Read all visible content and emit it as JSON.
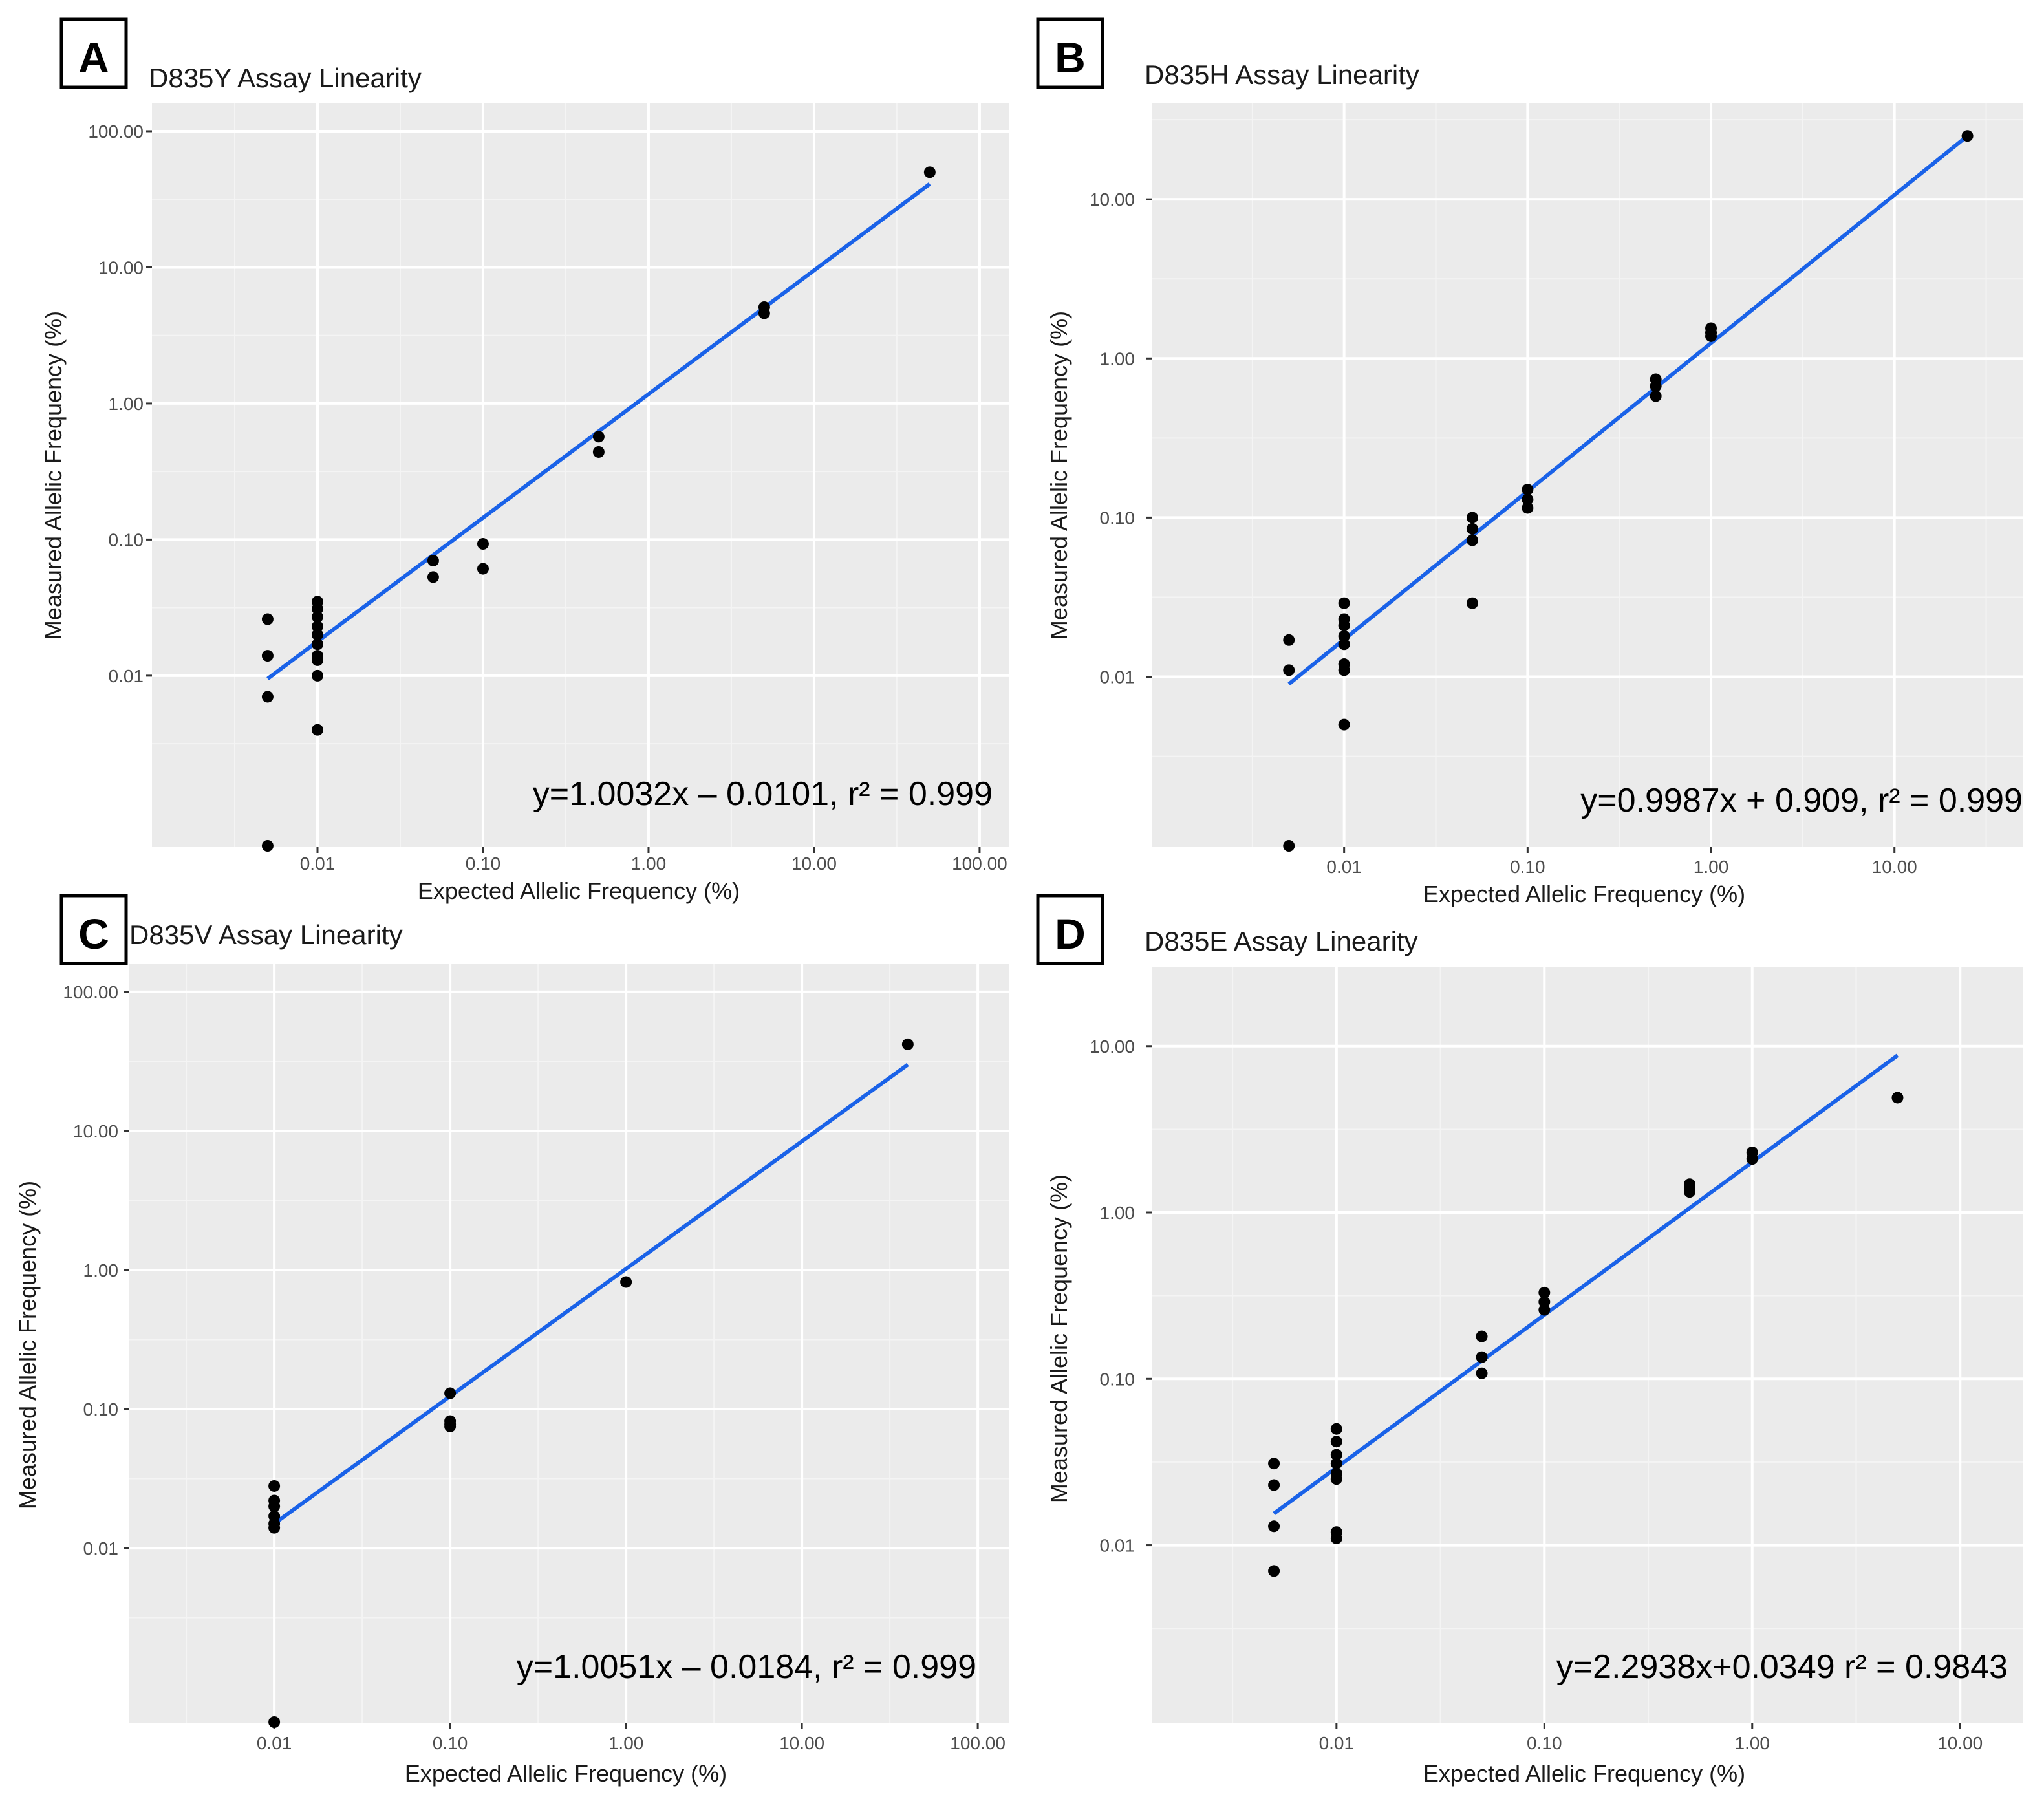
{
  "figure": {
    "description_hidden": false
  },
  "colors": {
    "panel_bg": "#ebebeb",
    "grid_major": "#ffffff",
    "grid_minor": "#f4f4f4",
    "fit_line": "#1a62e8",
    "point": "#000000",
    "tick_text": "#4d4d4d",
    "text": "#1a1a1a"
  },
  "chart_data": [
    {
      "panel_label": "A",
      "type": "scatter",
      "title": "D835Y Assay Linearity",
      "xlabel": "Expected Allelic Frequency (%)",
      "ylabel": "Measured Allelic Frequency (%)",
      "scale": "log10",
      "xlim": [
        0.001,
        150
      ],
      "ylim": [
        0.00055,
        160
      ],
      "x_ticks": [
        0.01,
        0.1,
        1,
        10,
        100
      ],
      "x_tick_labels": [
        "0.01",
        "0.10",
        "1.00",
        "10.00",
        "100.00"
      ],
      "y_ticks": [
        0.01,
        0.1,
        1,
        10,
        100
      ],
      "y_tick_labels": [
        "0.01",
        "0.10",
        "1.00",
        "10.00",
        "100.00"
      ],
      "points": [
        [
          0.005,
          0.026
        ],
        [
          0.005,
          0.014
        ],
        [
          0.005,
          0.007
        ],
        [
          0.005,
          0.00055
        ],
        [
          0.01,
          0.035
        ],
        [
          0.01,
          0.031
        ],
        [
          0.01,
          0.027
        ],
        [
          0.01,
          0.023
        ],
        [
          0.01,
          0.02
        ],
        [
          0.01,
          0.017
        ],
        [
          0.01,
          0.014
        ],
        [
          0.01,
          0.013
        ],
        [
          0.01,
          0.01
        ],
        [
          0.01,
          0.004
        ],
        [
          0.05,
          0.07
        ],
        [
          0.05,
          0.053
        ],
        [
          0.1,
          0.093
        ],
        [
          0.1,
          0.061
        ],
        [
          0.5,
          0.57
        ],
        [
          0.5,
          0.44
        ],
        [
          5,
          5.1
        ],
        [
          5,
          4.6
        ],
        [
          50,
          50
        ]
      ],
      "fit_line": {
        "x": [
          0.005,
          50
        ],
        "y": [
          0.0095,
          41
        ]
      },
      "equation": "y=1.0032x – 0.0101, r² = 0.999"
    },
    {
      "panel_label": "B",
      "type": "scatter",
      "title": "D835H Assay Linearity",
      "xlabel": "Expected Allelic Frequency (%)",
      "ylabel": "Measured Allelic Frequency (%)",
      "scale": "log10",
      "xlim": [
        0.0009,
        50
      ],
      "ylim": [
        0.00085,
        40
      ],
      "x_ticks": [
        0.01,
        0.1,
        1,
        10
      ],
      "x_tick_labels": [
        "0.01",
        "0.10",
        "1.00",
        "10.00"
      ],
      "y_ticks": [
        0.01,
        0.1,
        1,
        10
      ],
      "y_tick_labels": [
        "0.01",
        "0.10",
        "1.00",
        "10.00"
      ],
      "points": [
        [
          0.005,
          0.017
        ],
        [
          0.005,
          0.011
        ],
        [
          0.005,
          0.00085
        ],
        [
          0.01,
          0.029
        ],
        [
          0.01,
          0.023
        ],
        [
          0.01,
          0.021
        ],
        [
          0.01,
          0.018
        ],
        [
          0.01,
          0.016
        ],
        [
          0.01,
          0.012
        ],
        [
          0.01,
          0.011
        ],
        [
          0.01,
          0.005
        ],
        [
          0.05,
          0.1
        ],
        [
          0.05,
          0.085
        ],
        [
          0.05,
          0.072
        ],
        [
          0.05,
          0.029
        ],
        [
          0.1,
          0.15
        ],
        [
          0.1,
          0.13
        ],
        [
          0.1,
          0.115
        ],
        [
          0.5,
          0.74
        ],
        [
          0.5,
          0.67
        ],
        [
          0.5,
          0.58
        ],
        [
          1,
          1.55
        ],
        [
          1,
          1.45
        ],
        [
          1,
          1.38
        ],
        [
          25,
          25
        ]
      ],
      "fit_line": {
        "x": [
          0.005,
          25
        ],
        "y": [
          0.009,
          25
        ]
      },
      "equation": "y=0.9987x + 0.909, r² = 0.999"
    },
    {
      "panel_label": "C",
      "type": "scatter",
      "title": "D835V Assay Linearity",
      "xlabel": "Expected Allelic Frequency (%)",
      "ylabel": "Measured Allelic Frequency (%)",
      "scale": "log10",
      "xlim": [
        0.0015,
        150
      ],
      "ylim": [
        0.00055,
        160
      ],
      "x_ticks": [
        0.01,
        0.1,
        1,
        10,
        100
      ],
      "x_tick_labels": [
        "0.01",
        "0.10",
        "1.00",
        "10.00",
        "100.00"
      ],
      "y_ticks": [
        0.01,
        0.1,
        1,
        10,
        100
      ],
      "y_tick_labels": [
        "0.01",
        "0.10",
        "1.00",
        "10.00",
        "100.00"
      ],
      "points": [
        [
          0.01,
          0.028
        ],
        [
          0.01,
          0.022
        ],
        [
          0.01,
          0.02
        ],
        [
          0.01,
          0.017
        ],
        [
          0.01,
          0.015
        ],
        [
          0.01,
          0.014
        ],
        [
          0.01,
          0.00055
        ],
        [
          0.1,
          0.13
        ],
        [
          0.1,
          0.082
        ],
        [
          0.1,
          0.078
        ],
        [
          0.1,
          0.075
        ],
        [
          1,
          0.82
        ],
        [
          40,
          42
        ]
      ],
      "fit_line": {
        "x": [
          0.01,
          40
        ],
        "y": [
          0.015,
          30
        ]
      },
      "equation": "y=1.0051x – 0.0184, r² = 0.999"
    },
    {
      "panel_label": "D",
      "type": "scatter",
      "title": "D835E Assay Linearity",
      "xlabel": "Expected Allelic Frequency (%)",
      "ylabel": "Measured Allelic Frequency (%)",
      "scale": "log10",
      "xlim": [
        0.0013,
        20
      ],
      "ylim": [
        0.00085,
        30
      ],
      "x_ticks": [
        0.01,
        0.1,
        1,
        10
      ],
      "x_tick_labels": [
        "0.01",
        "0.10",
        "1.00",
        "10.00"
      ],
      "y_ticks": [
        0.01,
        0.1,
        1,
        10
      ],
      "y_tick_labels": [
        "0.01",
        "0.10",
        "1.00",
        "10.00"
      ],
      "points": [
        [
          0.005,
          0.031
        ],
        [
          0.005,
          0.023
        ],
        [
          0.005,
          0.013
        ],
        [
          0.005,
          0.007
        ],
        [
          0.01,
          0.05
        ],
        [
          0.01,
          0.042
        ],
        [
          0.01,
          0.035
        ],
        [
          0.01,
          0.031
        ],
        [
          0.01,
          0.027
        ],
        [
          0.01,
          0.025
        ],
        [
          0.01,
          0.012
        ],
        [
          0.01,
          0.011
        ],
        [
          0.05,
          0.18
        ],
        [
          0.05,
          0.135
        ],
        [
          0.05,
          0.108
        ],
        [
          0.1,
          0.33
        ],
        [
          0.1,
          0.29
        ],
        [
          0.1,
          0.26
        ],
        [
          0.5,
          1.48
        ],
        [
          0.5,
          1.4
        ],
        [
          0.5,
          1.33
        ],
        [
          1,
          2.3
        ],
        [
          1,
          2.1
        ],
        [
          5,
          4.9
        ]
      ],
      "fit_line": {
        "x": [
          0.005,
          5
        ],
        "y": [
          0.0155,
          8.8
        ]
      },
      "equation": "y=2.2938x+0.0349 r² = 0.9843"
    }
  ]
}
